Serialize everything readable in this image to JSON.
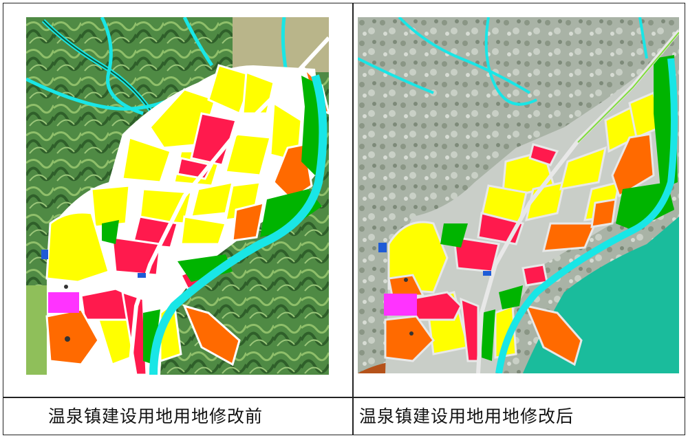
{
  "captions": {
    "before": "温泉镇建设用地用地修改前",
    "after": "温泉镇建设用地用地修改后"
  },
  "colors": {
    "residential": "#ffff00",
    "commercial": "#ff1a4d",
    "industrial_orange": "#ff6a00",
    "green_space": "#00b400",
    "water": "#19e6e6",
    "public_facility": "#ff33ff",
    "road": "#ffffff",
    "terrain_green": "#3f7f3a",
    "satellite_gray": "#a8b0a8",
    "reservoir_teal": "#1abc9c",
    "brown_area": "#b5521a"
  }
}
